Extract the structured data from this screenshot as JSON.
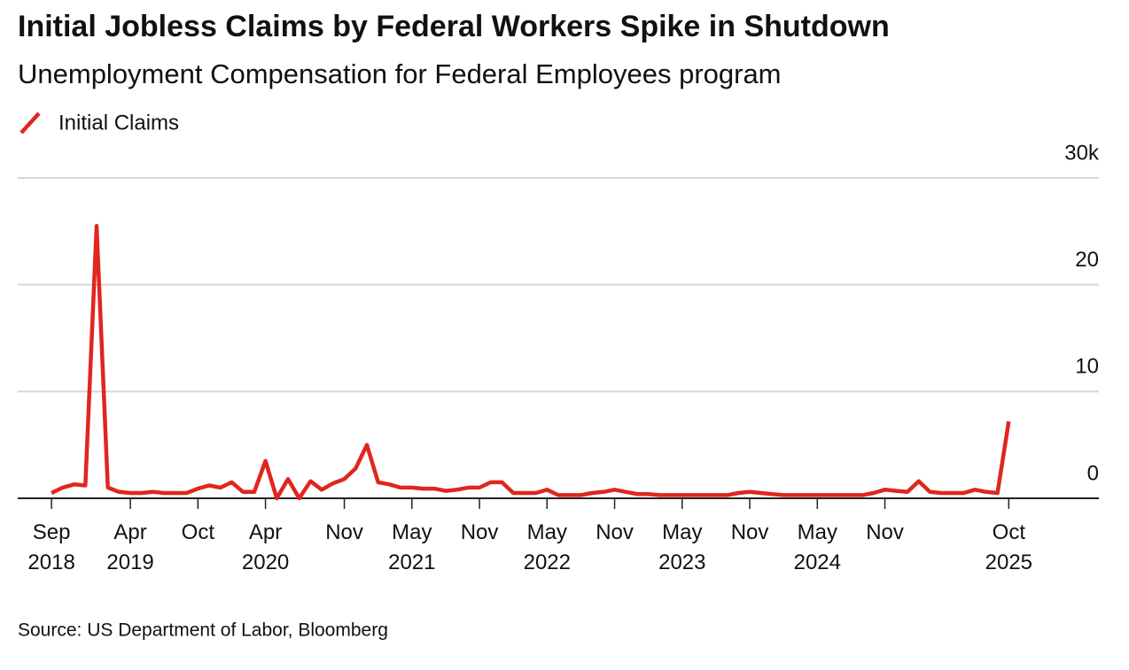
{
  "chart_data": {
    "type": "line",
    "title": "Initial Jobless Claims by Federal Workers Spike in Shutdown",
    "subtitle": "Unemployment Compensation for Federal Employees program",
    "source": "Source: US Department of Labor, Bloomberg",
    "x": [
      "2018-09",
      "2018-10",
      "2018-11",
      "2018-12",
      "2019-01",
      "2019-02",
      "2019-03",
      "2019-04",
      "2019-05",
      "2019-06",
      "2019-07",
      "2019-08",
      "2019-09",
      "2019-10",
      "2019-11",
      "2019-12",
      "2020-01",
      "2020-02",
      "2020-03",
      "2020-04",
      "2020-05",
      "2020-06",
      "2020-07",
      "2020-08",
      "2020-09",
      "2020-10",
      "2020-11",
      "2020-12",
      "2021-01",
      "2021-02",
      "2021-03",
      "2021-04",
      "2021-05",
      "2021-06",
      "2021-07",
      "2021-08",
      "2021-09",
      "2021-10",
      "2021-11",
      "2021-12",
      "2022-01",
      "2022-02",
      "2022-03",
      "2022-04",
      "2022-05",
      "2022-06",
      "2022-07",
      "2022-08",
      "2022-09",
      "2022-10",
      "2022-11",
      "2022-12",
      "2023-01",
      "2023-02",
      "2023-03",
      "2023-04",
      "2023-05",
      "2023-06",
      "2023-07",
      "2023-08",
      "2023-09",
      "2023-10",
      "2023-11",
      "2023-12",
      "2024-01",
      "2024-02",
      "2024-03",
      "2024-04",
      "2024-05",
      "2024-06",
      "2024-07",
      "2024-08",
      "2024-09",
      "2024-10",
      "2024-11",
      "2024-12",
      "2025-01",
      "2025-02",
      "2025-03",
      "2025-04",
      "2025-05",
      "2025-06",
      "2025-07",
      "2025-08",
      "2025-09",
      "2025-10"
    ],
    "series": [
      {
        "name": "Initial Claims",
        "color": "#e0261e",
        "values": [
          0.5,
          1.0,
          1.3,
          1.2,
          25.5,
          1.0,
          0.6,
          0.5,
          0.5,
          0.6,
          0.5,
          0.5,
          0.5,
          0.9,
          1.2,
          1.0,
          1.5,
          0.6,
          0.6,
          3.5,
          0,
          1.8,
          0,
          1.6,
          0.8,
          1.4,
          1.8,
          2.8,
          5.0,
          1.5,
          1.3,
          1.0,
          1.0,
          0.9,
          0.9,
          0.7,
          0.8,
          1.0,
          1.0,
          1.5,
          1.5,
          0.5,
          0.5,
          0.5,
          0.8,
          0.3,
          0.3,
          0.3,
          0.5,
          0.6,
          0.8,
          0.6,
          0.4,
          0.4,
          0.3,
          0.3,
          0.3,
          0.3,
          0.3,
          0.3,
          0.3,
          0.5,
          0.6,
          0.5,
          0.4,
          0.3,
          0.3,
          0.3,
          0.3,
          0.3,
          0.3,
          0.3,
          0.3,
          0.5,
          0.8,
          0.7,
          0.6,
          1.6,
          0.6,
          0.5,
          0.5,
          0.5,
          0.8,
          0.6,
          0.5,
          7.2
        ]
      }
    ],
    "xlim": [
      "2018-06",
      "2026-06"
    ],
    "xticks": [
      {
        "value": "2018-09",
        "label": "Sep 2018"
      },
      {
        "value": "2019-04",
        "label": "Apr 2019"
      },
      {
        "value": "2019-10",
        "label": "Oct"
      },
      {
        "value": "2020-04",
        "label": "Apr 2020"
      },
      {
        "value": "2020-11",
        "label": "Nov"
      },
      {
        "value": "2021-05",
        "label": "May 2021"
      },
      {
        "value": "2021-11",
        "label": "Nov"
      },
      {
        "value": "2022-05",
        "label": "May 2022"
      },
      {
        "value": "2022-11",
        "label": "Nov"
      },
      {
        "value": "2023-05",
        "label": "May 2023"
      },
      {
        "value": "2023-11",
        "label": "Nov"
      },
      {
        "value": "2024-05",
        "label": "May 2024"
      },
      {
        "value": "2024-11",
        "label": "Nov"
      },
      {
        "value": "2025-10",
        "label": "Oct 2025"
      }
    ],
    "ylim": [
      0,
      30
    ],
    "yticks": [
      0,
      10,
      20,
      {
        "value": 30,
        "label": "30k"
      }
    ],
    "grid": true
  }
}
